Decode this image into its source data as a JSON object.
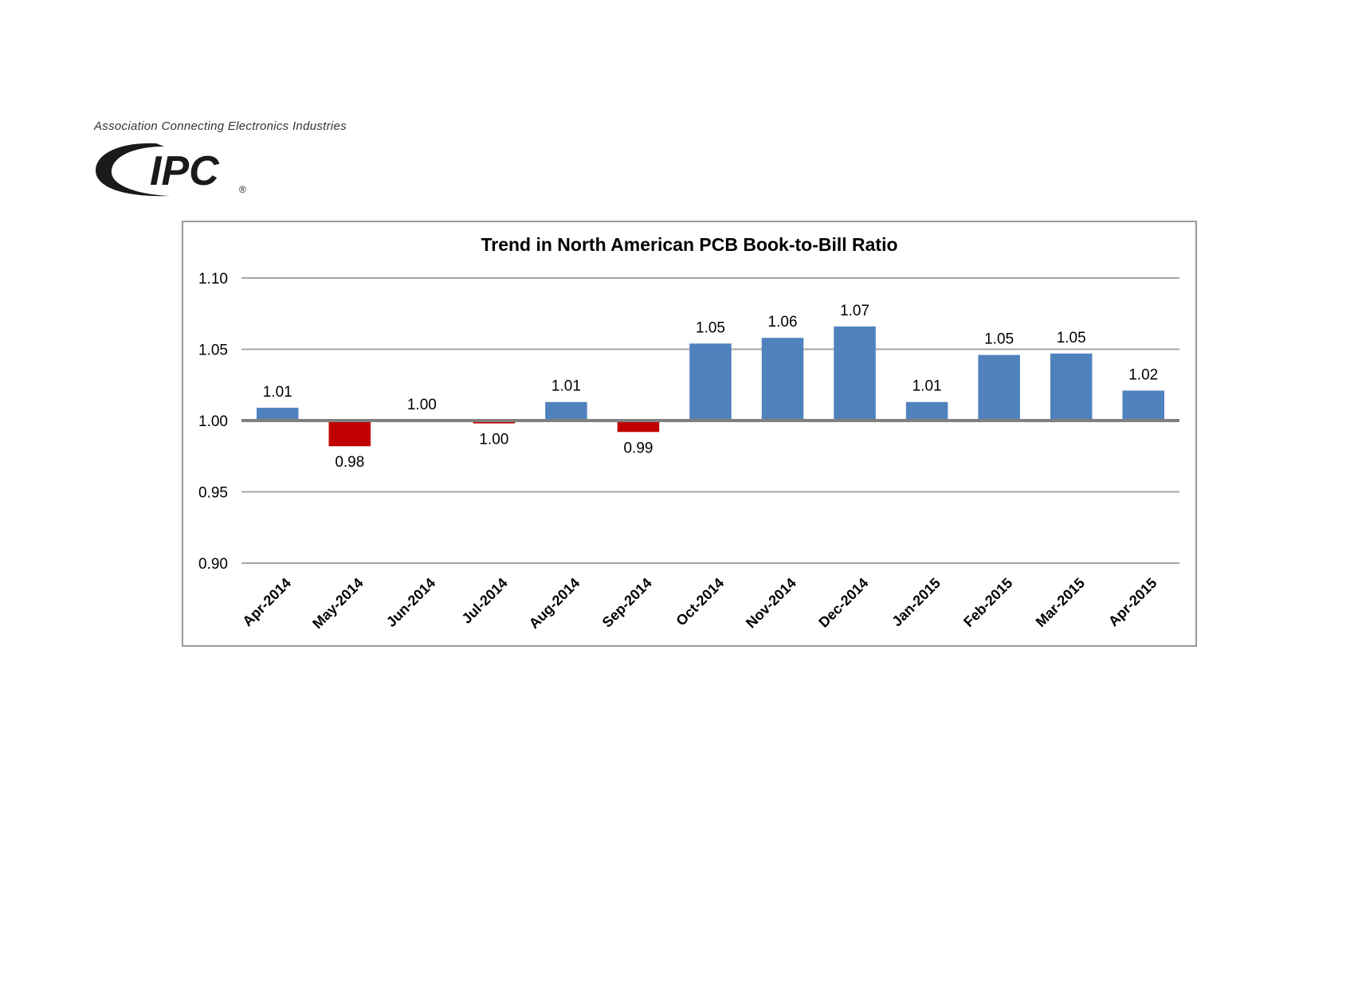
{
  "logo": {
    "tagline": "Association Connecting Electronics Industries",
    "wordmark": "IPC",
    "registered": "®",
    "icon": "ipc-swoosh-logo"
  },
  "chart_data": {
    "type": "bar",
    "title": "Trend in North American PCB Book-to-Bill Ratio",
    "xlabel": "",
    "ylabel": "",
    "baseline": 1.0,
    "ylim": [
      0.9,
      1.1
    ],
    "yticks": [
      1.1,
      1.05,
      1.0,
      0.95,
      0.9
    ],
    "ytick_labels": [
      "1.10",
      "1.05",
      "1.00",
      "0.95",
      "0.90"
    ],
    "grid": true,
    "legend": "none",
    "categories": [
      "Apr-2014",
      "May-2014",
      "Jun-2014",
      "Jul-2014",
      "Aug-2014",
      "Sep-2014",
      "Oct-2014",
      "Nov-2014",
      "Dec-2014",
      "Jan-2015",
      "Feb-2015",
      "Mar-2015",
      "Apr-2015"
    ],
    "values": [
      1.009,
      0.982,
      1.0,
      0.998,
      1.013,
      0.992,
      1.054,
      1.058,
      1.066,
      1.013,
      1.046,
      1.047,
      1.021
    ],
    "labels": [
      "1.01",
      "0.98",
      "1.00",
      "1.00",
      "1.01",
      "0.99",
      "1.05",
      "1.06",
      "1.07",
      "1.01",
      "1.05",
      "1.05",
      "1.02"
    ],
    "colors": {
      "above": "#4f81bd",
      "below": "#c00000",
      "grid": "#a6a6a6",
      "baseline": "#808080"
    }
  }
}
